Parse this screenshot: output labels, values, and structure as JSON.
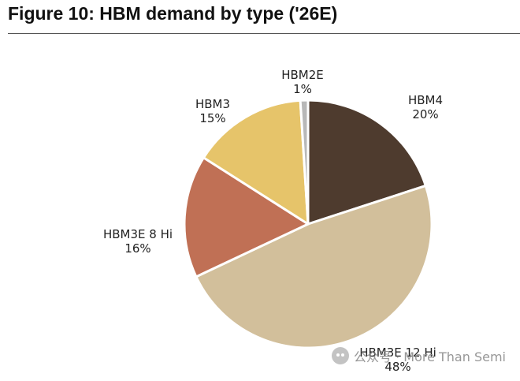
{
  "header": {
    "title": "Figure 10: HBM demand by type ('26E)"
  },
  "watermark": {
    "icon": "wechat-icon",
    "text": "公众号 · More Than Semi"
  },
  "chart_data": {
    "type": "pie",
    "title": "Figure 10: HBM demand by type ('26E)",
    "start": "12 o'clock, clockwise",
    "slices": [
      {
        "label": "HBM4",
        "pct_label": "20%",
        "value": 20,
        "color": "#4e3b2e"
      },
      {
        "label": "HBM3E 12 Hi",
        "pct_label": "48%",
        "value": 48,
        "color": "#d2bf9b"
      },
      {
        "label": "HBM3E 8 Hi",
        "pct_label": "16%",
        "value": 16,
        "color": "#c07055"
      },
      {
        "label": "HBM3",
        "pct_label": "15%",
        "value": 15,
        "color": "#e6c46a"
      },
      {
        "label": "HBM2E",
        "pct_label": "1%",
        "value": 1,
        "color": "#b8b8b8"
      }
    ]
  }
}
